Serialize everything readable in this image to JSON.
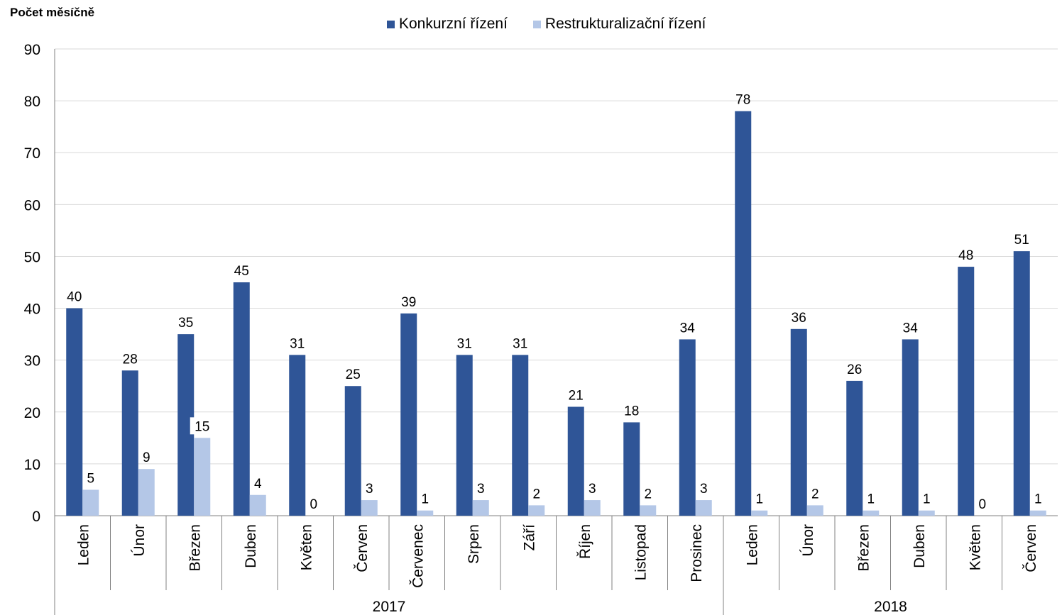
{
  "chart_data": {
    "type": "bar",
    "ylabel": "Počet měsíčně",
    "ylim": [
      0,
      90
    ],
    "yticks": [
      0,
      10,
      20,
      30,
      40,
      50,
      60,
      70,
      80,
      90
    ],
    "grid": true,
    "legend_position": "top-center",
    "categories": [
      "Leden",
      "Únor",
      "Březen",
      "Duben",
      "Květen",
      "Červen",
      "Červenec",
      "Srpen",
      "Září",
      "Říjen",
      "Listopad",
      "Prosinec",
      "Leden",
      "Únor",
      "Březen",
      "Duben",
      "Květen",
      "Červen"
    ],
    "groups": [
      {
        "label": "2017",
        "count": 12
      },
      {
        "label": "2018",
        "count": 6
      }
    ],
    "series": [
      {
        "name": "Konkurzní řízení",
        "color": "#2F5597",
        "values": [
          40,
          28,
          35,
          45,
          31,
          25,
          39,
          31,
          31,
          21,
          18,
          34,
          78,
          36,
          26,
          34,
          48,
          51
        ]
      },
      {
        "name": "Restrukturalizační řízení",
        "color": "#B4C7E7",
        "values": [
          5,
          9,
          15,
          4,
          0,
          3,
          1,
          3,
          2,
          3,
          2,
          3,
          1,
          2,
          1,
          1,
          0,
          1
        ]
      }
    ]
  }
}
